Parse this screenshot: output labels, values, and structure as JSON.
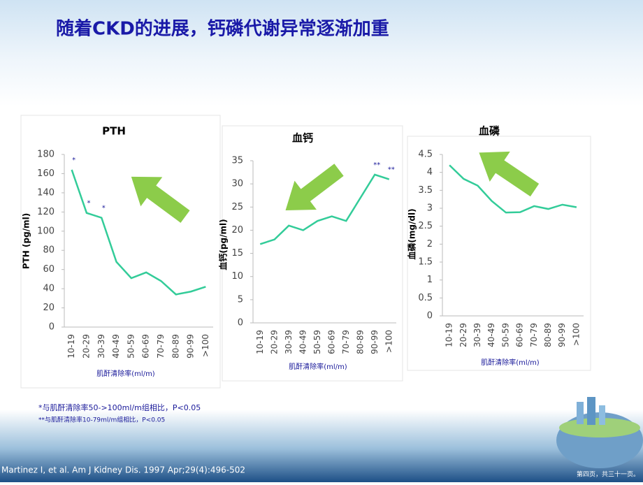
{
  "slide": {
    "title": "随着CKD的进展，钙磷代谢异常逐渐加重",
    "footnotes": [
      "*与肌酐清除率50->100ml/m组相比，P<0.05",
      "**与肌酐清除率10-79ml/m组相比，P<0.05"
    ],
    "citation": "Martinez  I, et al. Am J Kidney Dis. 1997 Apr;29(4):496-502",
    "page_label": "第四页，共三十一页。"
  },
  "chart_data": [
    {
      "type": "line",
      "title": "PTH",
      "y_label": "PTH (pg/ml)",
      "x_label": "肌酐清除率(ml/m)",
      "categories": [
        "10-19",
        "20-29",
        "30-39",
        "40-49",
        "50-59",
        "60-69",
        "70-79",
        "80-89",
        "90-99",
        ">100"
      ],
      "values": [
        164,
        119,
        114,
        68,
        51,
        57,
        48,
        34,
        37,
        42
      ],
      "point_labels": [
        "*",
        "*",
        "*",
        null,
        null,
        null,
        null,
        null,
        null,
        null
      ],
      "color": "#33cc99",
      "ylim": [
        0,
        180
      ],
      "yticks": [
        0,
        20,
        40,
        60,
        80,
        100,
        120,
        140,
        160,
        180
      ]
    },
    {
      "type": "line",
      "title": "血钙",
      "y_label": "血钙(pg/ml)",
      "x_label": "肌酐清除率(ml/m)",
      "categories": [
        "10-19",
        "20-29",
        "30-39",
        "40-49",
        "50-59",
        "60-69",
        "70-79",
        "80-89",
        "90-99",
        ">100"
      ],
      "values": [
        17,
        18,
        21,
        20,
        22,
        23,
        22,
        27,
        32,
        31
      ],
      "point_labels": [
        null,
        null,
        null,
        null,
        null,
        null,
        null,
        null,
        "**",
        "**"
      ],
      "color": "#33cc99",
      "ylim": [
        0,
        35
      ],
      "yticks": [
        0,
        5,
        10,
        15,
        20,
        25,
        30,
        35
      ]
    },
    {
      "type": "line",
      "title": "血磷",
      "y_label": "血磷(mg/dl)",
      "x_label": "肌酐清除率(ml/m)",
      "categories": [
        "10-19",
        "20-29",
        "30-39",
        "40-49",
        "50-59",
        "60-69",
        "70-79",
        "80-89",
        "90-99",
        ">100"
      ],
      "values": [
        4.2,
        3.82,
        3.63,
        3.2,
        2.88,
        2.89,
        3.06,
        2.98,
        3.1,
        3.03
      ],
      "color": "#33cc99",
      "ylim": [
        0,
        4.5
      ],
      "yticks": [
        0,
        0.5,
        1,
        1.5,
        2,
        2.5,
        3,
        3.5,
        4,
        4.5
      ]
    }
  ]
}
